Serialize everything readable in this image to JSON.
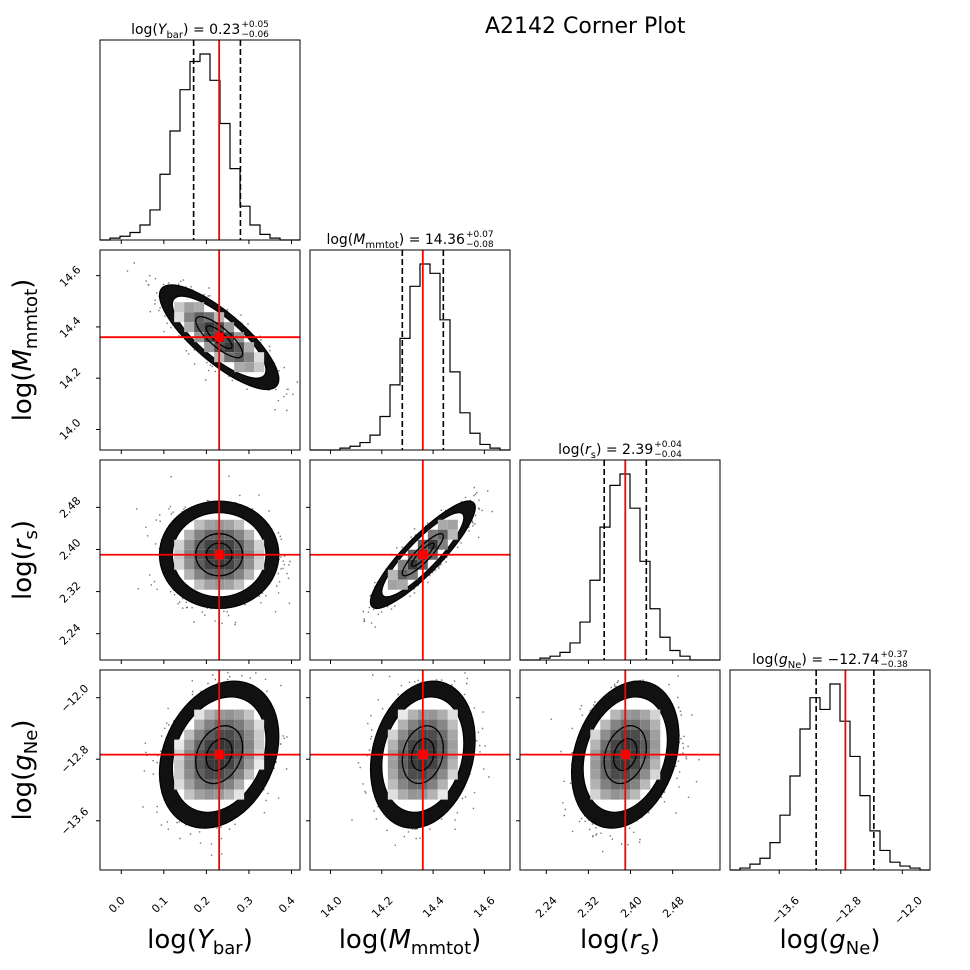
{
  "title": "A2142 Corner Plot",
  "chart_data": {
    "type": "corner",
    "parameters": [
      {
        "name": "log(Y_bar)",
        "axis_label": [
          "log(",
          "Y",
          "bar",
          ")"
        ],
        "estimate": {
          "prefix": "log(",
          "var": "Y",
          "sub": "bar",
          "suffix": ")",
          "value": "0.23",
          "plus": "+0.05",
          "minus": "−0.06"
        },
        "median": 0.23,
        "lower": 0.17,
        "upper": 0.28,
        "range": [
          -0.05,
          0.42
        ],
        "ticks": [
          0.0,
          0.1,
          0.2,
          0.3,
          0.4
        ],
        "tick_labels": [
          "0.0",
          "0.1",
          "0.2",
          "0.3",
          "0.4"
        ],
        "hist": [
          0,
          1,
          2,
          4,
          8,
          16,
          35,
          58,
          80,
          95,
          99,
          85,
          62,
          38,
          18,
          8,
          3,
          1,
          0,
          0
        ]
      },
      {
        "name": "log(M_mmtot)",
        "axis_label": [
          "log(",
          "M",
          "mmtot",
          ")"
        ],
        "estimate": {
          "prefix": "log(",
          "var": "M",
          "sub": "mmtot",
          "suffix": ")",
          "value": "14.36",
          "plus": "+0.07",
          "minus": "−0.08"
        },
        "median": 14.36,
        "lower": 14.28,
        "upper": 14.44,
        "range": [
          13.92,
          14.7
        ],
        "ticks": [
          14.0,
          14.2,
          14.4,
          14.6
        ],
        "tick_labels": [
          "14.0",
          "14.2",
          "14.4",
          "14.6"
        ],
        "hist": [
          0,
          0,
          0,
          1,
          2,
          4,
          8,
          18,
          35,
          60,
          88,
          100,
          95,
          70,
          42,
          20,
          9,
          3,
          1,
          0
        ]
      },
      {
        "name": "log(r_s)",
        "axis_label": [
          "log(",
          "r",
          "s",
          ")"
        ],
        "estimate": {
          "prefix": "log(",
          "var": "r",
          "sub": "s",
          "suffix": ")",
          "value": "2.39",
          "plus": "+0.04",
          "minus": "−0.04"
        },
        "median": 2.39,
        "lower": 2.35,
        "upper": 2.43,
        "range": [
          2.19,
          2.57
        ],
        "ticks": [
          2.24,
          2.32,
          2.4,
          2.48
        ],
        "tick_labels": [
          "2.24",
          "2.32",
          "2.40",
          "2.48"
        ],
        "hist": [
          0,
          0,
          1,
          2,
          4,
          9,
          20,
          42,
          70,
          92,
          98,
          80,
          52,
          27,
          12,
          5,
          2,
          0,
          0,
          0
        ]
      },
      {
        "name": "log(g_Ne)",
        "axis_label": [
          "log(",
          "g",
          "Ne",
          ")"
        ],
        "estimate": {
          "prefix": "log(",
          "var": "g",
          "sub": "Ne",
          "suffix": ")",
          "value": "−12.74",
          "plus": "+0.37",
          "minus": "−0.38"
        },
        "median": -12.74,
        "lower": -13.12,
        "upper": -12.37,
        "range": [
          -14.24,
          -11.64
        ],
        "ticks": [
          -13.6,
          -12.8,
          -12.0
        ],
        "tick_labels": [
          "−13.6",
          "−12.8",
          "−12.0"
        ],
        "hist": [
          0,
          1,
          3,
          6,
          14,
          28,
          48,
          72,
          88,
          82,
          95,
          76,
          58,
          38,
          20,
          10,
          4,
          2,
          1,
          0
        ]
      }
    ],
    "correlations": {
      "1,0": -0.8,
      "2,0": 0.0,
      "2,1": 0.88,
      "3,0": 0.25,
      "3,1": 0.2,
      "3,2": 0.25
    },
    "truth_color": "#ff0000",
    "quantiles": [
      0.16,
      0.5,
      0.84
    ]
  }
}
